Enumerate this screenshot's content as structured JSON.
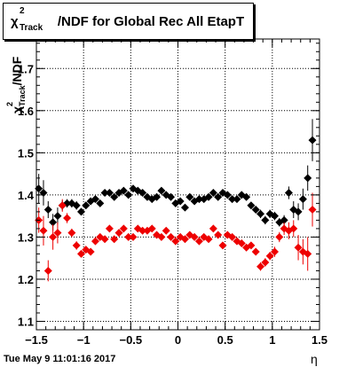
{
  "title": {
    "symbol": "χ",
    "superscript": "2",
    "subscript": "Track",
    "rest": "/NDF for Global Rec All EtapT"
  },
  "ylabel": {
    "symbol": "χ",
    "superscript": "2",
    "subscript": "Track",
    "rest": "/NDF"
  },
  "xlabel": "η",
  "footer": "Tue May  9 11:01:16 2017",
  "colors": {
    "black_series": "#000000",
    "red_series": "#ee0000",
    "frame": "#000000"
  },
  "chart_data": {
    "type": "scatter",
    "title": "χ²_Track/NDF for Global Rec All EtapT",
    "xlabel": "η",
    "ylabel": "χ²_Track/NDF",
    "xlim": [
      -1.5,
      1.5
    ],
    "ylim": [
      1.08,
      1.77
    ],
    "xticks": [
      -1.5,
      -1,
      -0.5,
      0,
      0.5,
      1,
      1.5
    ],
    "xtick_labels": [
      "−1.5",
      "−1",
      "−0.5",
      "0",
      "0.5",
      "1",
      "1.5"
    ],
    "yticks": [
      1.1,
      1.2,
      1.3,
      1.4,
      1.5,
      1.6,
      1.7
    ],
    "ytick_labels": [
      "1.1",
      "1.2",
      "1.3",
      "1.4",
      "1.5",
      "1.6",
      "1.7"
    ],
    "grid": true,
    "series": [
      {
        "color": "#000000",
        "points": [
          {
            "x": -1.475,
            "y": 1.415,
            "err": 0.035
          },
          {
            "x": -1.425,
            "y": 1.405,
            "err": 0.03
          },
          {
            "x": -1.375,
            "y": 1.365,
            "err": 0.02
          },
          {
            "x": -1.325,
            "y": 1.335,
            "err": 0.02
          },
          {
            "x": -1.275,
            "y": 1.35,
            "err": 0.02
          },
          {
            "x": -1.225,
            "y": 1.375,
            "err": 0.012
          },
          {
            "x": -1.175,
            "y": 1.38,
            "err": 0.01
          },
          {
            "x": -1.125,
            "y": 1.38,
            "err": 0.01
          },
          {
            "x": -1.075,
            "y": 1.375,
            "err": 0.01
          },
          {
            "x": -1.025,
            "y": 1.36,
            "err": 0.008
          },
          {
            "x": -0.975,
            "y": 1.375,
            "err": 0.008
          },
          {
            "x": -0.925,
            "y": 1.385,
            "err": 0.008
          },
          {
            "x": -0.875,
            "y": 1.39,
            "err": 0.008
          },
          {
            "x": -0.825,
            "y": 1.38,
            "err": 0.008
          },
          {
            "x": -0.775,
            "y": 1.405,
            "err": 0.008
          },
          {
            "x": -0.725,
            "y": 1.405,
            "err": 0.008
          },
          {
            "x": -0.675,
            "y": 1.395,
            "err": 0.008
          },
          {
            "x": -0.625,
            "y": 1.405,
            "err": 0.008
          },
          {
            "x": -0.575,
            "y": 1.41,
            "err": 0.008
          },
          {
            "x": -0.525,
            "y": 1.4,
            "err": 0.008
          },
          {
            "x": -0.475,
            "y": 1.415,
            "err": 0.008
          },
          {
            "x": -0.425,
            "y": 1.41,
            "err": 0.008
          },
          {
            "x": -0.375,
            "y": 1.405,
            "err": 0.008
          },
          {
            "x": -0.325,
            "y": 1.395,
            "err": 0.008
          },
          {
            "x": -0.275,
            "y": 1.39,
            "err": 0.008
          },
          {
            "x": -0.225,
            "y": 1.395,
            "err": 0.008
          },
          {
            "x": -0.175,
            "y": 1.41,
            "err": 0.008
          },
          {
            "x": -0.125,
            "y": 1.4,
            "err": 0.008
          },
          {
            "x": -0.075,
            "y": 1.395,
            "err": 0.008
          },
          {
            "x": -0.025,
            "y": 1.38,
            "err": 0.008
          },
          {
            "x": 0.025,
            "y": 1.385,
            "err": 0.008
          },
          {
            "x": 0.075,
            "y": 1.37,
            "err": 0.008
          },
          {
            "x": 0.125,
            "y": 1.395,
            "err": 0.008
          },
          {
            "x": 0.175,
            "y": 1.385,
            "err": 0.008
          },
          {
            "x": 0.225,
            "y": 1.39,
            "err": 0.008
          },
          {
            "x": 0.275,
            "y": 1.39,
            "err": 0.008
          },
          {
            "x": 0.325,
            "y": 1.395,
            "err": 0.008
          },
          {
            "x": 0.375,
            "y": 1.405,
            "err": 0.008
          },
          {
            "x": 0.425,
            "y": 1.395,
            "err": 0.008
          },
          {
            "x": 0.475,
            "y": 1.405,
            "err": 0.008
          },
          {
            "x": 0.525,
            "y": 1.4,
            "err": 0.008
          },
          {
            "x": 0.575,
            "y": 1.39,
            "err": 0.008
          },
          {
            "x": 0.625,
            "y": 1.39,
            "err": 0.008
          },
          {
            "x": 0.675,
            "y": 1.4,
            "err": 0.008
          },
          {
            "x": 0.725,
            "y": 1.395,
            "err": 0.008
          },
          {
            "x": 0.775,
            "y": 1.375,
            "err": 0.008
          },
          {
            "x": 0.825,
            "y": 1.365,
            "err": 0.008
          },
          {
            "x": 0.875,
            "y": 1.355,
            "err": 0.01
          },
          {
            "x": 0.925,
            "y": 1.34,
            "err": 0.01
          },
          {
            "x": 0.975,
            "y": 1.355,
            "err": 0.01
          },
          {
            "x": 1.025,
            "y": 1.35,
            "err": 0.01
          },
          {
            "x": 1.075,
            "y": 1.335,
            "err": 0.01
          },
          {
            "x": 1.125,
            "y": 1.34,
            "err": 0.012
          },
          {
            "x": 1.175,
            "y": 1.405,
            "err": 0.015
          },
          {
            "x": 1.225,
            "y": 1.365,
            "err": 0.02
          },
          {
            "x": 1.275,
            "y": 1.36,
            "err": 0.02
          },
          {
            "x": 1.325,
            "y": 1.39,
            "err": 0.025
          },
          {
            "x": 1.375,
            "y": 1.44,
            "err": 0.03
          },
          {
            "x": 1.425,
            "y": 1.53,
            "err": 0.05
          }
        ]
      },
      {
        "color": "#ee0000",
        "points": [
          {
            "x": -1.475,
            "y": 1.34,
            "err": 0.03
          },
          {
            "x": -1.425,
            "y": 1.315,
            "err": 0.035
          },
          {
            "x": -1.375,
            "y": 1.22,
            "err": 0.025
          },
          {
            "x": -1.325,
            "y": 1.3,
            "err": 0.03
          },
          {
            "x": -1.275,
            "y": 1.31,
            "err": 0.025
          },
          {
            "x": -1.225,
            "y": 1.375,
            "err": 0.015
          },
          {
            "x": -1.175,
            "y": 1.345,
            "err": 0.012
          },
          {
            "x": -1.125,
            "y": 1.31,
            "err": 0.01
          },
          {
            "x": -1.075,
            "y": 1.28,
            "err": 0.01
          },
          {
            "x": -1.025,
            "y": 1.26,
            "err": 0.008
          },
          {
            "x": -0.975,
            "y": 1.27,
            "err": 0.008
          },
          {
            "x": -0.925,
            "y": 1.265,
            "err": 0.008
          },
          {
            "x": -0.875,
            "y": 1.29,
            "err": 0.008
          },
          {
            "x": -0.825,
            "y": 1.3,
            "err": 0.008
          },
          {
            "x": -0.775,
            "y": 1.295,
            "err": 0.008
          },
          {
            "x": -0.725,
            "y": 1.32,
            "err": 0.008
          },
          {
            "x": -0.675,
            "y": 1.295,
            "err": 0.008
          },
          {
            "x": -0.625,
            "y": 1.31,
            "err": 0.008
          },
          {
            "x": -0.575,
            "y": 1.32,
            "err": 0.008
          },
          {
            "x": -0.525,
            "y": 1.3,
            "err": 0.008
          },
          {
            "x": -0.475,
            "y": 1.3,
            "err": 0.008
          },
          {
            "x": -0.425,
            "y": 1.32,
            "err": 0.008
          },
          {
            "x": -0.375,
            "y": 1.315,
            "err": 0.008
          },
          {
            "x": -0.325,
            "y": 1.315,
            "err": 0.008
          },
          {
            "x": -0.275,
            "y": 1.32,
            "err": 0.008
          },
          {
            "x": -0.225,
            "y": 1.305,
            "err": 0.008
          },
          {
            "x": -0.175,
            "y": 1.3,
            "err": 0.008
          },
          {
            "x": -0.125,
            "y": 1.315,
            "err": 0.008
          },
          {
            "x": -0.075,
            "y": 1.3,
            "err": 0.008
          },
          {
            "x": -0.025,
            "y": 1.29,
            "err": 0.008
          },
          {
            "x": 0.025,
            "y": 1.3,
            "err": 0.008
          },
          {
            "x": 0.075,
            "y": 1.295,
            "err": 0.008
          },
          {
            "x": 0.125,
            "y": 1.305,
            "err": 0.008
          },
          {
            "x": 0.175,
            "y": 1.3,
            "err": 0.008
          },
          {
            "x": 0.225,
            "y": 1.29,
            "err": 0.008
          },
          {
            "x": 0.275,
            "y": 1.3,
            "err": 0.008
          },
          {
            "x": 0.325,
            "y": 1.295,
            "err": 0.008
          },
          {
            "x": 0.375,
            "y": 1.32,
            "err": 0.008
          },
          {
            "x": 0.425,
            "y": 1.305,
            "err": 0.008
          },
          {
            "x": 0.475,
            "y": 1.28,
            "err": 0.008
          },
          {
            "x": 0.525,
            "y": 1.305,
            "err": 0.008
          },
          {
            "x": 0.575,
            "y": 1.3,
            "err": 0.008
          },
          {
            "x": 0.625,
            "y": 1.29,
            "err": 0.008
          },
          {
            "x": 0.675,
            "y": 1.285,
            "err": 0.008
          },
          {
            "x": 0.725,
            "y": 1.275,
            "err": 0.008
          },
          {
            "x": 0.775,
            "y": 1.28,
            "err": 0.008
          },
          {
            "x": 0.825,
            "y": 1.265,
            "err": 0.008
          },
          {
            "x": 0.875,
            "y": 1.23,
            "err": 0.01
          },
          {
            "x": 0.925,
            "y": 1.24,
            "err": 0.01
          },
          {
            "x": 0.975,
            "y": 1.255,
            "err": 0.01
          },
          {
            "x": 1.025,
            "y": 1.265,
            "err": 0.012
          },
          {
            "x": 1.075,
            "y": 1.3,
            "err": 0.012
          },
          {
            "x": 1.125,
            "y": 1.32,
            "err": 0.015
          },
          {
            "x": 1.175,
            "y": 1.315,
            "err": 0.02
          },
          {
            "x": 1.225,
            "y": 1.32,
            "err": 0.02
          },
          {
            "x": 1.275,
            "y": 1.275,
            "err": 0.03
          },
          {
            "x": 1.325,
            "y": 1.265,
            "err": 0.03
          },
          {
            "x": 1.375,
            "y": 1.26,
            "err": 0.04
          },
          {
            "x": 1.425,
            "y": 1.365,
            "err": 0.04
          }
        ]
      }
    ]
  }
}
